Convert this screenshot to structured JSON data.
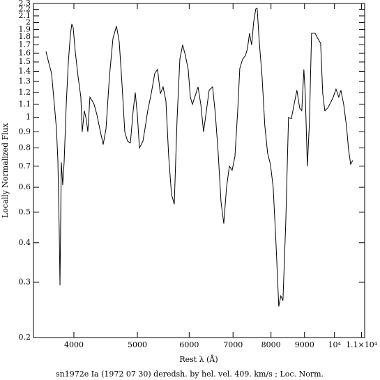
{
  "chart_data": {
    "type": "line",
    "x_label": "Rest λ (Å)",
    "y_label": "Locally Normalized Flux",
    "caption": "sn1972e Ia (1972 07 30) deredsh. by hel. vel.   409. km/s ;  Loc. Norm.",
    "log_x": true,
    "log_y": true,
    "color": "#000000",
    "xlim": [
      3470,
      11120
    ],
    "ylim": [
      0.2,
      2.3
    ],
    "xticks": [
      4000,
      5000,
      6000,
      7000,
      8000,
      9000,
      {
        "value": 10000,
        "label": "10⁴"
      },
      {
        "value": 11000,
        "label": "1.1×10⁴"
      }
    ],
    "yticks": [
      0.2,
      0.3,
      0.4,
      0.5,
      0.6,
      0.7,
      0.8,
      0.9,
      1,
      1.1,
      1.2,
      1.3,
      1.4,
      1.5,
      1.6,
      1.7,
      1.8,
      1.9,
      2,
      2.1,
      2.2,
      2.3
    ],
    "x": [
      3626,
      3662,
      3698,
      3734,
      3762,
      3781,
      3799,
      3809,
      3827,
      3846,
      3865,
      3894,
      3922,
      3951,
      3971,
      3990,
      4020,
      4059,
      4099,
      4119,
      4150,
      4180,
      4201,
      4232,
      4264,
      4295,
      4337,
      4391,
      4434,
      4478,
      4533,
      4589,
      4646,
      4691,
      4737,
      4784,
      4831,
      4879,
      4927,
      4963,
      5000,
      5037,
      5099,
      5136,
      5186,
      5250,
      5316,
      5368,
      5421,
      5474,
      5528,
      5583,
      5638,
      5693,
      5750,
      5806,
      5863,
      5921,
      5979,
      6024,
      6068,
      6128,
      6189,
      6250,
      6311,
      6374,
      6436,
      6515,
      6579,
      6644,
      6710,
      6776,
      6842,
      6910,
      6978,
      7046,
      7116,
      7168,
      7238,
      7310,
      7363,
      7418,
      7473,
      7527,
      7583,
      7620,
      7676,
      7752,
      7828,
      7905,
      7983,
      8061,
      8141,
      8221,
      8281,
      8343,
      8425,
      8508,
      8592,
      8677,
      8762,
      8849,
      8914,
      8980,
      9024,
      9091,
      9158,
      9226,
      9340,
      9432,
      9525,
      9596,
      9667,
      9762,
      9858,
      9956,
      10054,
      10153,
      10228,
      10329,
      10431,
      10508,
      10586,
      10665
    ],
    "values": [
      1.62,
      1.49,
      1.38,
      1.1,
      0.92,
      0.73,
      0.44,
      0.293,
      0.72,
      0.61,
      0.72,
      1.1,
      1.49,
      1.83,
      1.98,
      1.93,
      1.61,
      1.35,
      1.16,
      0.9,
      1.05,
      0.98,
      0.9,
      1.16,
      1.13,
      1.1,
      1.02,
      0.9,
      0.82,
      0.92,
      1.35,
      1.78,
      1.95,
      1.74,
      1.28,
      0.9,
      0.84,
      0.83,
      1.05,
      1.2,
      1.02,
      0.8,
      0.84,
      0.92,
      1.05,
      1.19,
      1.38,
      1.42,
      1.19,
      1.25,
      1.13,
      0.75,
      0.57,
      0.53,
      0.99,
      1.53,
      1.7,
      1.57,
      1.42,
      1.16,
      1.1,
      1.17,
      1.25,
      1.1,
      0.9,
      1.05,
      1.22,
      1.25,
      1.02,
      0.77,
      0.54,
      0.46,
      0.6,
      0.7,
      0.68,
      0.75,
      1.05,
      1.43,
      1.53,
      1.57,
      1.65,
      1.85,
      1.7,
      2.01,
      2.21,
      2.22,
      1.74,
      1.35,
      0.94,
      0.77,
      0.71,
      0.6,
      0.4,
      0.251,
      0.271,
      0.262,
      0.46,
      1.0,
      0.99,
      1.1,
      1.22,
      1.07,
      1.05,
      1.42,
      1.19,
      0.7,
      0.97,
      1.85,
      1.85,
      1.78,
      1.72,
      1.19,
      1.05,
      1.07,
      1.11,
      1.16,
      1.23,
      1.16,
      1.22,
      1.1,
      0.94,
      0.79,
      0.71,
      0.73
    ]
  }
}
